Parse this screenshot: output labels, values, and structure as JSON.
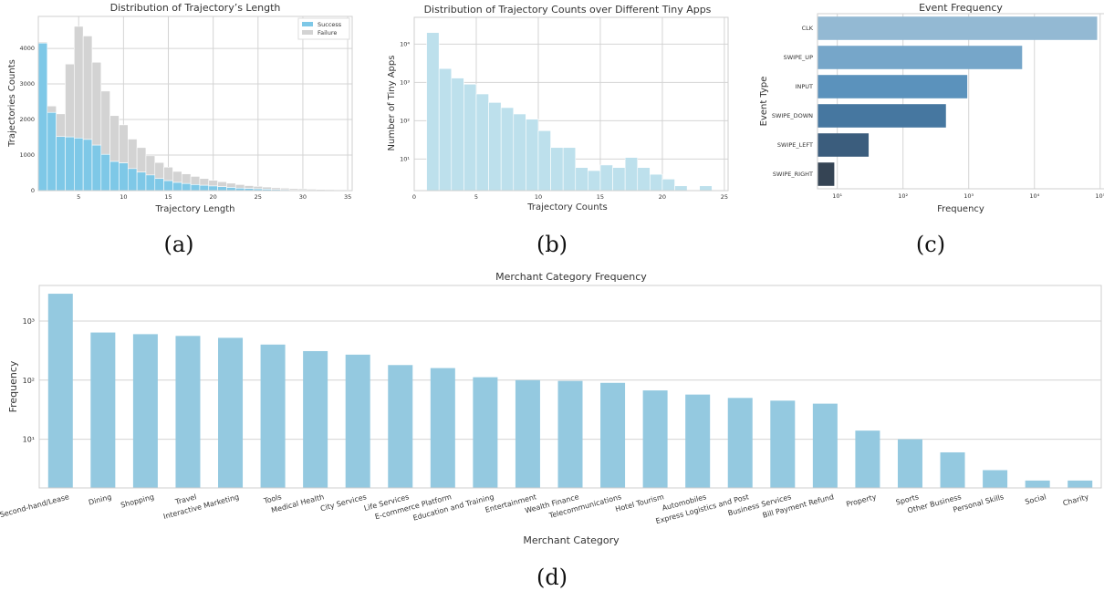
{
  "chart_data": [
    {
      "id": "a",
      "type": "bar",
      "title": "Distribution of Trajectory’s Length",
      "xlabel": "Trajectory Length",
      "ylabel": "Trajectories Counts",
      "caption": "(a)",
      "xlim": [
        0.5,
        35.5
      ],
      "ylim": [
        0,
        4900
      ],
      "xticks": [
        5,
        10,
        15,
        20,
        25,
        30,
        35
      ],
      "yticks": [
        0,
        1000,
        2000,
        3000,
        4000
      ],
      "legend": "top-right",
      "series": [
        {
          "name": "Success",
          "color": "#7ec8e7",
          "values": [
            4150,
            2200,
            1520,
            1510,
            1480,
            1440,
            1280,
            1020,
            820,
            780,
            620,
            520,
            440,
            340,
            280,
            230,
            200,
            170,
            150,
            130,
            110,
            90,
            70,
            60,
            50,
            40,
            30,
            25,
            20,
            15,
            10,
            8,
            6,
            5,
            4
          ]
        },
        {
          "name": "Failure",
          "color": "#d3d3d3",
          "values": [
            30,
            180,
            640,
            2050,
            3140,
            2910,
            2330,
            1780,
            1290,
            1070,
            830,
            690,
            540,
            450,
            380,
            310,
            270,
            230,
            190,
            160,
            140,
            120,
            100,
            80,
            70,
            60,
            50,
            45,
            40,
            35,
            30,
            25,
            20,
            15,
            12
          ]
        }
      ]
    },
    {
      "id": "b",
      "type": "bar",
      "title": "Distribution of Trajectory Counts over Different Tiny Apps",
      "xlabel": "Trajectory Counts",
      "ylabel": "Number of Tiny Apps",
      "caption": "(b)",
      "scale": "log",
      "xlim": [
        0,
        25.3
      ],
      "ylim": [
        1.5,
        50000
      ],
      "xticks": [
        0,
        5,
        10,
        15,
        20,
        25
      ],
      "yticks": [
        10,
        100,
        1000,
        10000
      ],
      "ytick_labels": [
        "10¹",
        "10²",
        "10³",
        "10⁴"
      ],
      "color": "#bde0ec",
      "bins": [
        1,
        2,
        3,
        4,
        5,
        6,
        7,
        8,
        9,
        10,
        11,
        12,
        13,
        14,
        15,
        16,
        17,
        18,
        19,
        20,
        21,
        22,
        23
      ],
      "values": [
        20000,
        2300,
        1300,
        900,
        500,
        300,
        220,
        150,
        110,
        55,
        20,
        20,
        6,
        5,
        7,
        6,
        11,
        6,
        4,
        3,
        2,
        0,
        2
      ]
    },
    {
      "id": "c",
      "type": "bar",
      "orientation": "horizontal",
      "title": "Event Frequency",
      "xlabel": "Frequency",
      "ylabel": "Event Type",
      "caption": "(c)",
      "scale": "log",
      "xlim": [
        5,
        130000
      ],
      "xticks": [
        10,
        100,
        1000,
        10000,
        100000
      ],
      "xtick_labels": [
        "10¹",
        "10²",
        "10³",
        "10⁴",
        "10⁵"
      ],
      "categories": [
        "CLK",
        "SWIPE_UP",
        "INPUT",
        "SWIPE_DOWN",
        "SWIPE_LEFT",
        "SWIPE_RIGHT"
      ],
      "values": [
        90000,
        6500,
        950,
        450,
        30,
        9
      ],
      "colors": [
        "#93b9d3",
        "#76a6c9",
        "#5b92bc",
        "#4677a0",
        "#3b5d7d",
        "#354454"
      ]
    },
    {
      "id": "d",
      "type": "bar",
      "title": "Merchant Category Frequency",
      "xlabel": "Merchant Category",
      "ylabel": "Frequency",
      "caption": "(d)",
      "scale": "log",
      "ylim": [
        1.5,
        4000
      ],
      "yticks": [
        10,
        100,
        1000
      ],
      "ytick_labels": [
        "10¹",
        "10²",
        "10³"
      ],
      "color": "#94c9e0",
      "categories": [
        "Second-hand/Lease",
        "Dining",
        "Shopping",
        "Travel",
        "Interactive Marketing",
        "Tools",
        "Medical Health",
        "City Services",
        "Life Services",
        "E-commerce Platform",
        "Education and Training",
        "Entertainment",
        "Wealth Finance",
        "Telecommunications",
        "Hotel Tourism",
        "Automobiles",
        "Express Logistics and Post",
        "Business Services",
        "Bill Payment Refund",
        "Property",
        "Sports",
        "Other Business",
        "Personal Skills",
        "Social",
        "Charity"
      ],
      "values": [
        2900,
        640,
        600,
        560,
        520,
        400,
        310,
        270,
        180,
        160,
        112,
        100,
        97,
        90,
        67,
        57,
        50,
        45,
        40,
        14,
        10,
        6,
        3,
        2,
        2
      ]
    }
  ]
}
